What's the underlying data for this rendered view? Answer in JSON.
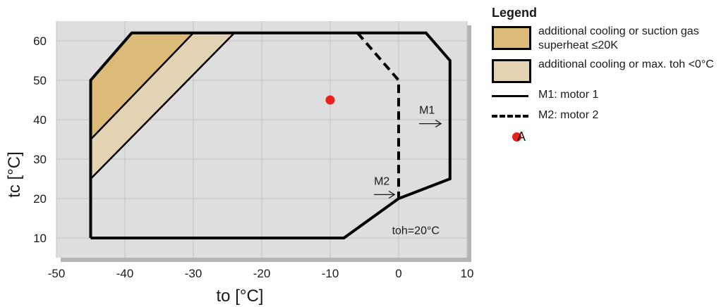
{
  "chart_data": {
    "type": "area",
    "xlabel": "to [°C]",
    "ylabel": "tc [°C]",
    "xlim": [
      -50,
      10
    ],
    "ylim": [
      5,
      65
    ],
    "xticks": [
      -50,
      -40,
      -30,
      -20,
      -10,
      0,
      10
    ],
    "yticks": [
      10,
      20,
      30,
      40,
      50,
      60
    ],
    "grid": true,
    "legend_position": "right",
    "colors": {
      "plot_background": "#dedede",
      "shadow": "#b4b4b4",
      "grid": "#c2c2c2",
      "fill_dark": "#dcba78",
      "fill_light": "#e3d3b2",
      "outline": "#000000",
      "point": "#e8201e"
    },
    "regions": [
      {
        "name": "additional cooling or suction gas superheat ≤20K",
        "fill": "#dcba78",
        "points": [
          [
            -45,
            35
          ],
          [
            -45,
            50
          ],
          [
            -39,
            62
          ],
          [
            -30,
            62
          ]
        ]
      },
      {
        "name": "additional cooling or max. toh <0°C",
        "fill": "#e3d3b2",
        "points": [
          [
            -45,
            25
          ],
          [
            -45,
            35
          ],
          [
            -30,
            62
          ],
          [
            -24,
            62
          ]
        ]
      }
    ],
    "boundaries": [
      {
        "name": "M1: motor 1",
        "style": "solid",
        "points": [
          [
            -45,
            10
          ],
          [
            -45,
            50
          ],
          [
            -39,
            62
          ],
          [
            4,
            62
          ],
          [
            7.5,
            55
          ],
          [
            7.5,
            25
          ],
          [
            0,
            20
          ],
          [
            -8,
            10
          ],
          [
            -45,
            10
          ]
        ]
      },
      {
        "name": "M2: motor 2",
        "style": "dashed",
        "points": [
          [
            -6,
            62
          ],
          [
            0,
            50
          ],
          [
            0,
            20
          ]
        ]
      }
    ],
    "inner_lines": [
      {
        "points": [
          [
            -45,
            35
          ],
          [
            -30,
            62
          ]
        ]
      },
      {
        "points": [
          [
            -45,
            25
          ],
          [
            -24,
            62
          ]
        ]
      }
    ],
    "point": {
      "name": "A",
      "x": -10,
      "y": 45
    },
    "annotations": [
      {
        "text": "M1",
        "x": 3,
        "y": 41.5,
        "arrow_from": [
          3,
          39
        ],
        "arrow_to": [
          6.2,
          39
        ]
      },
      {
        "text": "M2",
        "x": -3.6,
        "y": 23.5,
        "arrow_from": [
          -3.6,
          21
        ],
        "arrow_to": [
          -0.6,
          21
        ]
      },
      {
        "text": "toh=20°C",
        "x": 2.5,
        "y": 11,
        "arrow_from": null,
        "arrow_to": null
      }
    ]
  },
  "legend": {
    "title": "Legend",
    "items": [
      {
        "kind": "swatch",
        "color": "#dcba78",
        "label": "additional cooling or suction gas superheat ≤20K"
      },
      {
        "kind": "swatch",
        "color": "#e3d3b2",
        "label": "additional cooling or max. toh <0°C"
      },
      {
        "kind": "solid-line",
        "color": "#000000",
        "label": "M1: motor 1"
      },
      {
        "kind": "dashed-line",
        "color": "#000000",
        "label": "M2: motor 2"
      },
      {
        "kind": "dot",
        "color": "#e8201e",
        "label": "A"
      }
    ]
  }
}
